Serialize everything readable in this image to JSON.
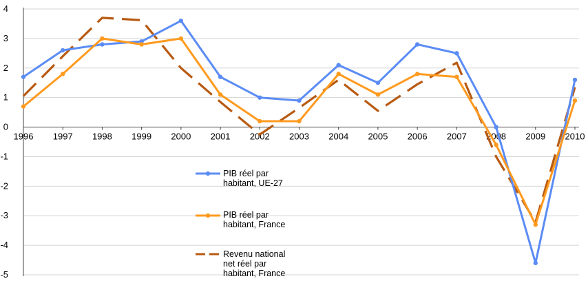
{
  "chart_data": {
    "type": "line",
    "title": "",
    "xlabel": "",
    "ylabel": "",
    "categories": [
      "1996",
      "1997",
      "1998",
      "1999",
      "2000",
      "2001",
      "2002",
      "2003",
      "2004",
      "2005",
      "2006",
      "2007",
      "2008",
      "2009",
      "2010"
    ],
    "ylim": [
      -5,
      4
    ],
    "yticks": [
      4,
      3,
      2,
      1,
      0,
      -1,
      -2,
      -3,
      -4,
      -5
    ],
    "grid": true,
    "legend_position": "inside-bottom-center",
    "series": [
      {
        "name": "PIB réel par habitant, UE-27",
        "name_lines": [
          "PIB réel par",
          "habitant, UE-27"
        ],
        "color": "#5b8cf5",
        "style": "solid-markers",
        "values": [
          1.7,
          2.6,
          2.8,
          2.9,
          3.6,
          1.7,
          1.0,
          0.9,
          2.1,
          1.5,
          2.8,
          2.5,
          0.0,
          -4.6,
          1.6
        ]
      },
      {
        "name": "PIB réel par habitant, France",
        "name_lines": [
          "PIB réel par",
          "habitant, France"
        ],
        "color": "#ff9a1f",
        "style": "solid-markers",
        "values": [
          0.7,
          1.8,
          3.0,
          2.8,
          3.0,
          1.1,
          0.2,
          0.2,
          1.8,
          1.1,
          1.8,
          1.7,
          -0.6,
          -3.3,
          0.9
        ]
      },
      {
        "name": "Revenu national net réel par habitant, France",
        "name_lines": [
          "Revenu national",
          "net réel par",
          "habitant, France"
        ],
        "color": "#b85a12",
        "style": "dashed",
        "values": [
          1.05,
          2.4,
          3.7,
          3.62,
          2.0,
          0.85,
          -0.25,
          0.65,
          1.6,
          0.55,
          1.45,
          2.18,
          -1.0,
          -3.22,
          1.35
        ]
      }
    ]
  }
}
